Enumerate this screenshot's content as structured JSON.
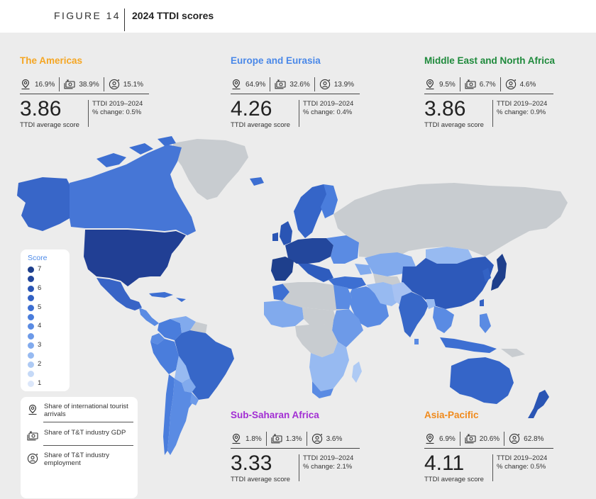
{
  "figure": {
    "number": "FIGURE 14",
    "title": "2024 TTDI scores"
  },
  "colors": {
    "americas": "#f5a623",
    "europe": "#4a88e8",
    "mena": "#1f8a3c",
    "ssa": "#a22ed3",
    "apac": "#f08a1c",
    "no_data": "#c8ccd0",
    "ocean": "#ececec"
  },
  "regions": {
    "americas": {
      "name": "The Americas",
      "arrivals": "16.9%",
      "gdp": "38.9%",
      "employment": "15.1%",
      "score": "3.86",
      "score_label": "TTDI average score",
      "change_line1": "TTDI 2019–2024",
      "change_line2": "% change: 0.5%"
    },
    "europe": {
      "name": "Europe and Eurasia",
      "arrivals": "64.9%",
      "gdp": "32.6%",
      "employment": "13.9%",
      "score": "4.26",
      "score_label": "TTDI average score",
      "change_line1": "TTDI 2019–2024",
      "change_line2": "% change: 0.4%"
    },
    "mena": {
      "name": "Middle East and North Africa",
      "arrivals": "9.5%",
      "gdp": "6.7%",
      "employment": "4.6%",
      "score": "3.86",
      "score_label": "TTDI average score",
      "change_line1": "TTDI 2019–2024",
      "change_line2": "% change: 0.9%"
    },
    "ssa": {
      "name": "Sub-Saharan Africa",
      "arrivals": "1.8%",
      "gdp": "1.3%",
      "employment": "3.6%",
      "score": "3.33",
      "score_label": "TTDI average score",
      "change_line1": "TTDI 2019–2024",
      "change_line2": "% change: 2.1%"
    },
    "apac": {
      "name": "Asia-Pacific",
      "arrivals": "6.9%",
      "gdp": "20.6%",
      "employment": "62.8%",
      "score": "4.11",
      "score_label": "TTDI average score",
      "change_line1": "TTDI 2019–2024",
      "change_line2": "% change: 0.5%"
    }
  },
  "legend": {
    "title": "Score",
    "labels": [
      "7",
      "6",
      "5",
      "4",
      "3",
      "2",
      "1"
    ],
    "scale_colors": [
      "#1e3f8c",
      "#23479c",
      "#2a55b4",
      "#3362c4",
      "#3d6fd2",
      "#4a7ddc",
      "#5a8be3",
      "#6d9ae8",
      "#81aaed",
      "#97baf1",
      "#aecaf4",
      "#c5d9f7",
      "#dce7fa"
    ]
  },
  "key": {
    "arrivals": "Share of international tourist arrivals",
    "gdp": "Share of T&T industry GDP",
    "employment": "Share of T&T industry employment"
  }
}
